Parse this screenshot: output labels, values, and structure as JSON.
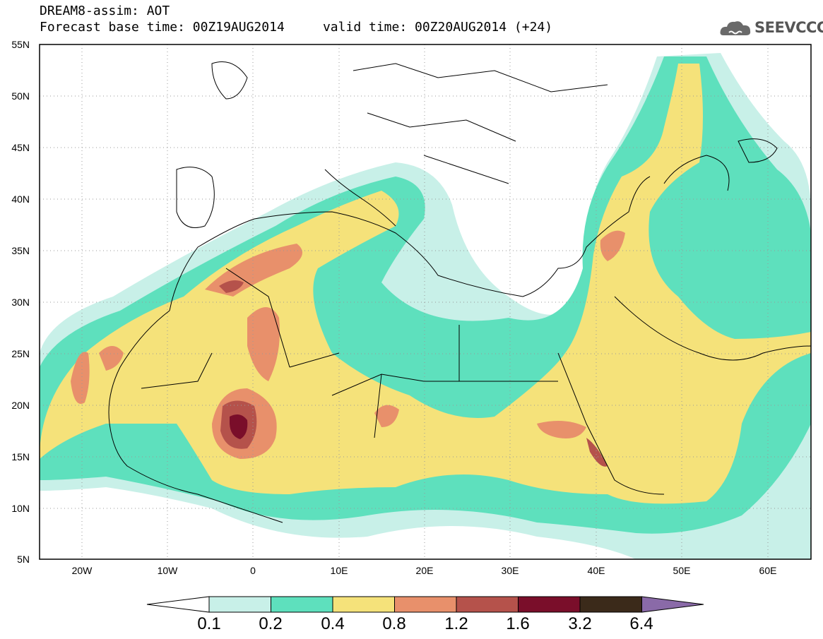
{
  "title": {
    "line1": "DREAM8-assim: AOT",
    "line2": "Forecast base time: 00Z19AUG2014     valid time: 00Z20AUG2014 (+24)"
  },
  "logo": {
    "text": "SEEVCCC",
    "icon": "cloud-icon"
  },
  "axes": {
    "lat_labels": [
      "55N",
      "50N",
      "45N",
      "40N",
      "35N",
      "30N",
      "25N",
      "20N",
      "15N",
      "10N",
      "5N"
    ],
    "lon_labels": [
      "20W",
      "10W",
      "0",
      "10E",
      "20E",
      "30E",
      "40E",
      "50E",
      "60E"
    ]
  },
  "colorbar": {
    "labels": [
      "0.1",
      "0.2",
      "0.4",
      "0.8",
      "1.2",
      "1.6",
      "3.2",
      "6.4"
    ],
    "colors": [
      "#c8f0e8",
      "#5ee0bd",
      "#f5e27a",
      "#e8906b",
      "#b5524b",
      "#7a0e2a",
      "#3b2a1a",
      "#8a6aa8"
    ]
  }
}
